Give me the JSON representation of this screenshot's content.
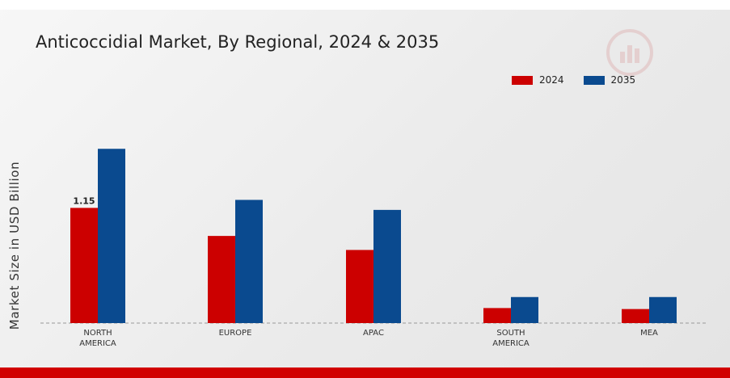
{
  "chart_data": {
    "type": "bar",
    "title": "Anticoccidial Market, By Regional, 2024 & 2035",
    "ylabel": "Market Size in USD Billion",
    "xlabel": "",
    "categories": [
      "NORTH\nAMERICA",
      "EUROPE",
      "APAC",
      "SOUTH\nAMERICA",
      "MEA"
    ],
    "series": [
      {
        "name": "2024",
        "color": "#cc0000",
        "values": [
          1.15,
          0.87,
          0.73,
          0.15,
          0.14
        ]
      },
      {
        "name": "2035",
        "color": "#0a4a8f",
        "values": [
          1.74,
          1.23,
          1.13,
          0.26,
          0.26
        ]
      }
    ],
    "data_labels": [
      {
        "series": 0,
        "index": 0,
        "text": "1.15"
      }
    ],
    "ylim": [
      0,
      2.5
    ],
    "grid": false,
    "legend_position": "top-right"
  },
  "watermark": {
    "icon": "market-research-logo-icon"
  },
  "colors": {
    "accent_bar": "#d10000"
  }
}
